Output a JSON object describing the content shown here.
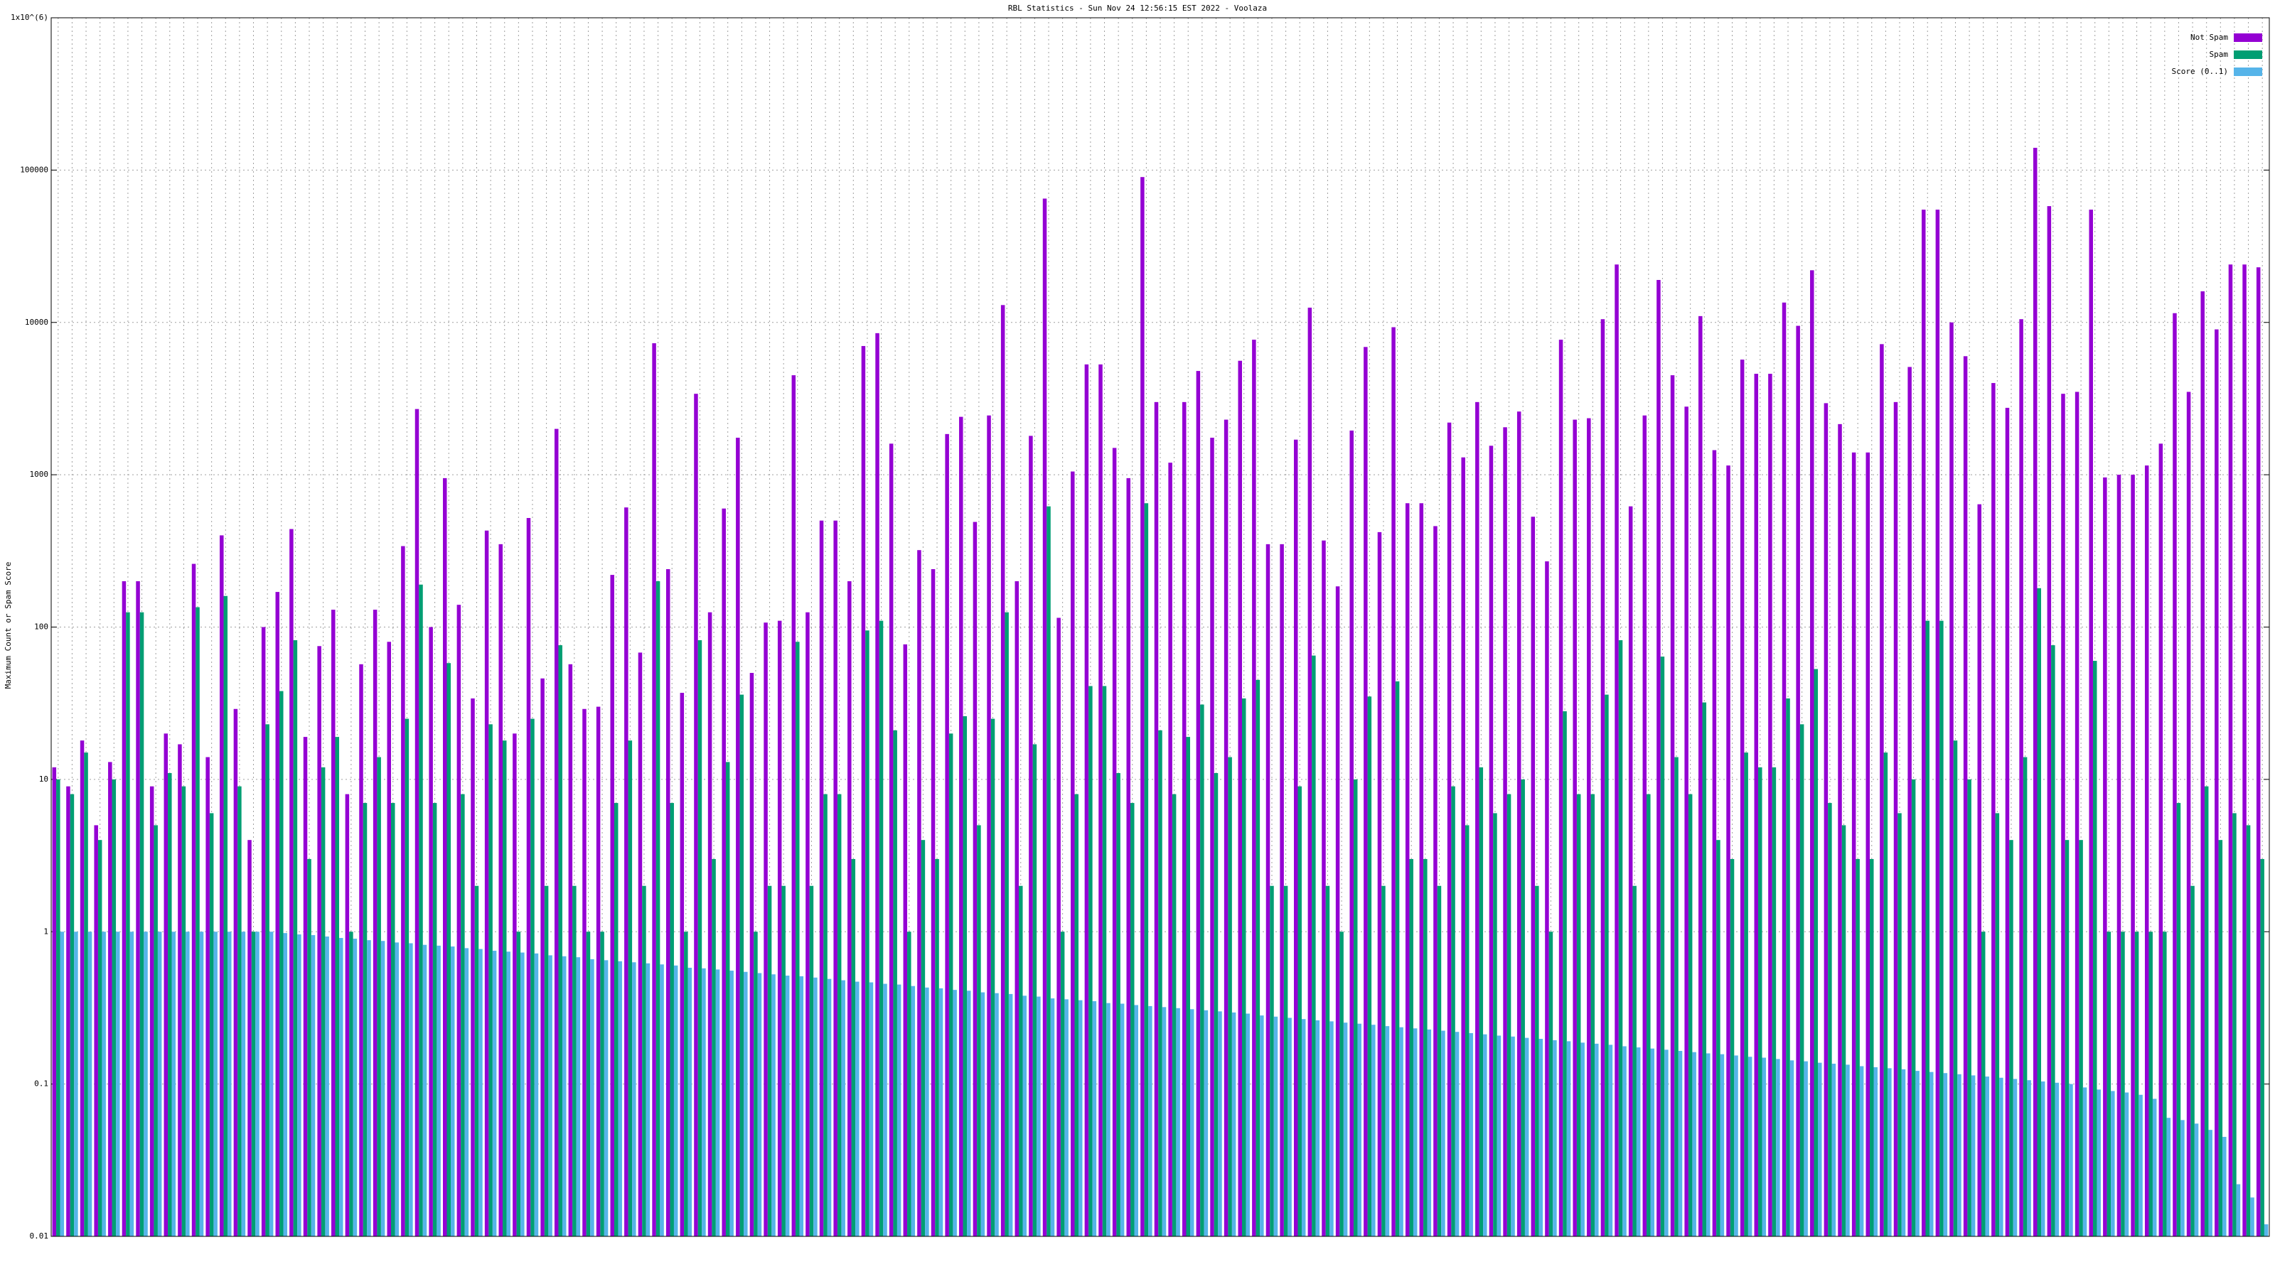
{
  "chart_data": {
    "type": "bar",
    "title": "RBL Statistics - Sun Nov 24 12:56:15 EST 2022 - Voolaza",
    "y_label": "Maximum Count or Spam Score",
    "log_y": true,
    "grid": true,
    "legend": "top-right",
    "ylim": [
      0.01,
      1000000
    ],
    "yticks": [
      0.01,
      0.1,
      1,
      10,
      100,
      1000,
      10000,
      100000,
      {
        "value": 1000000,
        "label": "1x10^(6)"
      }
    ],
    "categories": [
      null,
      null,
      null,
      null,
      null,
      null,
      null,
      null,
      null,
      null,
      null,
      null,
      null,
      null,
      null,
      null,
      null,
      null,
      null,
      null,
      null,
      null,
      null,
      null,
      null,
      null,
      null,
      null,
      null,
      null,
      null,
      null,
      null,
      null,
      null,
      null,
      null,
      null,
      null,
      null,
      null,
      null,
      null,
      null,
      null,
      null,
      null,
      null,
      null,
      null,
      null,
      null,
      null,
      null,
      null,
      null,
      null,
      null,
      null,
      null,
      null,
      null,
      null,
      null,
      null,
      null,
      null,
      null,
      null,
      null,
      null,
      null,
      null,
      null,
      null,
      null,
      null,
      null,
      null,
      null,
      null,
      null,
      null,
      null,
      null,
      null,
      null,
      null,
      null,
      null,
      null,
      null,
      null,
      null,
      null,
      null,
      null,
      null,
      null,
      null,
      null,
      null,
      null,
      null,
      null,
      null,
      null,
      null,
      null,
      null,
      null,
      null,
      null,
      null,
      null,
      null,
      null,
      null,
      null,
      null,
      null,
      null,
      null,
      null,
      null,
      null,
      null,
      null,
      null,
      null,
      null,
      null,
      null,
      null,
      null,
      null,
      null,
      null,
      null,
      null,
      null,
      null,
      null,
      null,
      null,
      null,
      null,
      null,
      null,
      null,
      null,
      null,
      null,
      null,
      null,
      null,
      null,
      null,
      null
    ],
    "series": [
      {
        "name": "Not Spam",
        "color": "#9400d3",
        "values": [
          12,
          9,
          18,
          5,
          13,
          200,
          200,
          9,
          20,
          17,
          260,
          14,
          400,
          29,
          4,
          100,
          170,
          440,
          19,
          75,
          130,
          8,
          57,
          130,
          80,
          340,
          2700,
          100,
          950,
          140,
          34,
          430,
          350,
          20,
          520,
          46,
          2000,
          57,
          29,
          30,
          220,
          610,
          68,
          7300,
          240,
          37,
          3400,
          125,
          600,
          1750,
          50,
          107,
          110,
          4500,
          125,
          500,
          500,
          200,
          7000,
          8500,
          1600,
          77,
          320,
          240,
          1850,
          2400,
          490,
          2450,
          13000,
          200,
          1800,
          65000,
          115,
          1050,
          5300,
          5300,
          1500,
          950,
          90000,
          3000,
          1200,
          3000,
          4800,
          1750,
          2300,
          5600,
          7700,
          350,
          350,
          1700,
          12500,
          370,
          185,
          1950,
          6900,
          420,
          9300,
          650,
          650,
          460,
          2200,
          1300,
          3000,
          1550,
          2050,
          2600,
          530,
          270,
          7700,
          2300,
          2350,
          10500,
          24000,
          620,
          2450,
          19000,
          4500,
          2800,
          11000,
          1450,
          1150,
          5700,
          4600,
          4600,
          13500,
          9500,
          22000,
          2950,
          2150,
          1400,
          1400,
          7200,
          3000,
          5100,
          55000,
          55000,
          10000,
          6000,
          640,
          4000,
          2750,
          10500,
          140000,
          58000,
          3400,
          3500,
          55000,
          960,
          1000,
          1000,
          1150,
          1600,
          11500,
          3500,
          16000,
          9000,
          24000,
          24000,
          23000
        ]
      },
      {
        "name": "Spam",
        "color": "#009e73",
        "values": [
          10,
          8,
          15,
          4,
          10,
          125,
          125,
          5,
          11,
          9,
          135,
          6,
          160,
          9,
          1,
          23,
          38,
          82,
          3,
          12,
          19,
          1,
          7,
          14,
          7,
          25,
          190,
          7,
          58,
          8,
          2,
          23,
          18,
          1,
          25,
          2,
          76,
          2,
          1,
          1,
          7,
          18,
          2,
          200,
          7,
          1,
          82,
          3,
          13,
          36,
          1,
          2,
          2,
          80,
          2,
          8,
          8,
          3,
          95,
          110,
          21,
          1,
          4,
          3,
          20,
          26,
          5,
          25,
          125,
          2,
          17,
          620,
          1,
          8,
          41,
          41,
          11,
          7,
          650,
          21,
          8,
          19,
          31,
          11,
          14,
          34,
          45,
          2,
          2,
          9,
          65,
          2,
          1,
          10,
          35,
          2,
          44,
          3,
          3,
          2,
          9,
          5,
          12,
          6,
          8,
          10,
          2,
          1,
          28,
          8,
          8,
          36,
          82,
          2,
          8,
          64,
          14,
          8,
          32,
          4,
          3,
          15,
          12,
          12,
          34,
          23,
          53,
          7,
          5,
          3,
          3,
          15,
          6,
          10,
          110,
          110,
          18,
          10,
          1,
          6,
          4,
          14,
          180,
          76,
          4,
          4,
          60,
          1,
          1,
          1,
          1,
          1,
          7,
          2,
          9,
          4,
          6,
          5,
          3
        ]
      },
      {
        "name": "Score (0..1)",
        "color": "#56b4e9",
        "values": [
          1,
          1,
          1,
          1,
          1,
          1,
          1,
          1,
          1,
          1,
          1,
          1,
          1,
          1,
          1,
          1,
          0.98,
          0.96,
          0.95,
          0.93,
          0.91,
          0.9,
          0.88,
          0.87,
          0.85,
          0.84,
          0.82,
          0.81,
          0.8,
          0.78,
          0.77,
          0.75,
          0.74,
          0.73,
          0.72,
          0.7,
          0.69,
          0.68,
          0.66,
          0.65,
          0.64,
          0.63,
          0.62,
          0.61,
          0.6,
          0.58,
          0.575,
          0.565,
          0.555,
          0.545,
          0.535,
          0.525,
          0.515,
          0.51,
          0.5,
          0.49,
          0.48,
          0.47,
          0.465,
          0.455,
          0.45,
          0.44,
          0.43,
          0.425,
          0.415,
          0.41,
          0.4,
          0.395,
          0.39,
          0.38,
          0.375,
          0.365,
          0.36,
          0.355,
          0.35,
          0.34,
          0.337,
          0.33,
          0.325,
          0.32,
          0.315,
          0.31,
          0.305,
          0.3,
          0.295,
          0.29,
          0.282,
          0.277,
          0.272,
          0.267,
          0.262,
          0.258,
          0.253,
          0.249,
          0.245,
          0.24,
          0.236,
          0.232,
          0.228,
          0.224,
          0.22,
          0.216,
          0.212,
          0.208,
          0.205,
          0.201,
          0.198,
          0.194,
          0.191,
          0.187,
          0.184,
          0.181,
          0.177,
          0.174,
          0.171,
          0.168,
          0.165,
          0.162,
          0.159,
          0.157,
          0.154,
          0.151,
          0.149,
          0.146,
          0.143,
          0.141,
          0.138,
          0.136,
          0.134,
          0.131,
          0.129,
          0.127,
          0.125,
          0.122,
          0.12,
          0.118,
          0.116,
          0.114,
          0.112,
          0.11,
          0.108,
          0.106,
          0.104,
          0.102,
          0.1,
          0.095,
          0.092,
          0.09,
          0.088,
          0.085,
          0.08,
          0.06,
          0.058,
          0.055,
          0.05,
          0.045,
          0.022,
          0.018,
          0.012
        ]
      }
    ]
  }
}
